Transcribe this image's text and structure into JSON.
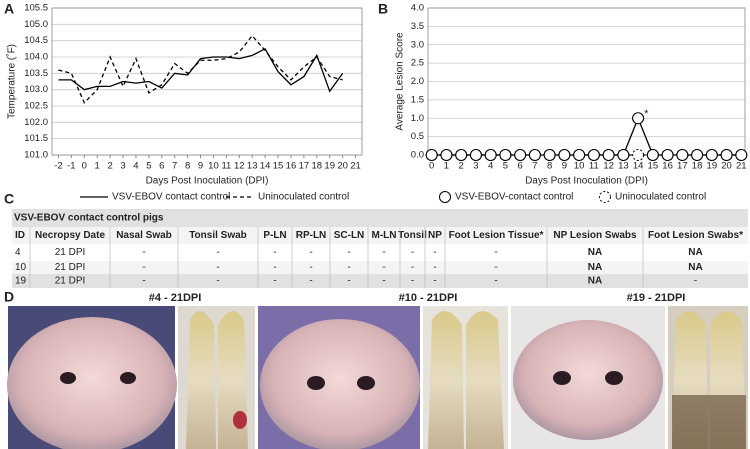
{
  "chart_data": [
    {
      "type": "line",
      "panel": "A",
      "y_label": "Temperature (˚F)",
      "x_label": "Days Post Inoculation (DPI)",
      "x": [
        -2,
        -1,
        0,
        1,
        2,
        3,
        4,
        5,
        6,
        7,
        8,
        9,
        10,
        11,
        12,
        13,
        14,
        15,
        16,
        17,
        18,
        19,
        20
      ],
      "series": [
        {
          "name": "VSV-EBOV contact control",
          "color": "#000000",
          "line_style": "solid",
          "values": [
            103.3,
            103.3,
            103.0,
            103.1,
            103.1,
            103.25,
            103.2,
            103.25,
            103.05,
            103.5,
            103.45,
            103.95,
            104.0,
            104.0,
            103.95,
            104.05,
            104.25,
            103.55,
            103.15,
            103.4,
            104.05,
            102.95,
            103.5
          ]
        },
        {
          "name": "Uninoculated control",
          "color": "#000000",
          "line_style": "dashed",
          "values": [
            103.6,
            103.5,
            102.6,
            103.0,
            104.0,
            103.1,
            103.95,
            102.9,
            103.15,
            103.8,
            103.5,
            103.9,
            103.9,
            103.95,
            104.15,
            104.65,
            104.2,
            103.7,
            103.3,
            103.7,
            104.0,
            103.4,
            103.3
          ]
        }
      ],
      "xlim": [
        -2.5,
        21.5
      ],
      "xticks": [
        -2,
        -1,
        0,
        1,
        2,
        3,
        4,
        5,
        6,
        7,
        8,
        9,
        10,
        11,
        12,
        13,
        14,
        15,
        16,
        17,
        18,
        19,
        20,
        21
      ],
      "ylim": [
        101,
        105.5
      ],
      "yticks": [
        {
          "value": 101,
          "label": "101.0"
        },
        101.5,
        {
          "value": 102,
          "label": "102.0"
        },
        102.5,
        {
          "value": 103,
          "label": "103.0"
        },
        103.5,
        {
          "value": 104,
          "label": "104.0"
        },
        104.5,
        {
          "value": 105,
          "label": "105.0"
        },
        105.5
      ],
      "grid": true,
      "legend": "bottom"
    },
    {
      "type": "line",
      "panel": "B",
      "y_label": "Average Lesion Score",
      "x_label": "Days Post Inoculation (DPI)",
      "x": [
        0,
        1,
        2,
        3,
        4,
        5,
        6,
        7,
        8,
        9,
        10,
        11,
        12,
        13,
        14,
        15,
        16,
        17,
        18,
        19,
        20,
        21
      ],
      "series": [
        {
          "name": "Uninoculated control",
          "color": "#000000",
          "line_style": "dashed",
          "marker": "circle",
          "values": [
            0,
            0,
            0,
            0,
            0,
            0,
            0,
            0,
            0,
            0,
            0,
            0,
            0,
            0,
            0,
            0,
            0,
            0,
            0,
            0,
            0,
            0
          ]
        },
        {
          "name": "VSV-EBOV-contact control",
          "color": "#000000",
          "line_style": "solid",
          "marker": "circle",
          "values": [
            0,
            0,
            0,
            0,
            0,
            0,
            0,
            0,
            0,
            0,
            0,
            0,
            0,
            0,
            1.0,
            0,
            0,
            0,
            0,
            0,
            0,
            0
          ]
        }
      ],
      "annotations": [
        {
          "x": 14,
          "y": 1.0,
          "text": "*"
        }
      ],
      "xlim": [
        -0.25,
        21.25
      ],
      "xticks": [
        0,
        1,
        2,
        3,
        4,
        5,
        6,
        7,
        8,
        9,
        10,
        11,
        12,
        13,
        14,
        15,
        16,
        17,
        18,
        19,
        20,
        21
      ],
      "ylim": [
        0,
        4
      ],
      "yticks": [
        {
          "value": 0,
          "label": "0.0"
        },
        0.5,
        {
          "value": 1,
          "label": "1.0"
        },
        1.5,
        {
          "value": 2,
          "label": "2.0"
        },
        2.5,
        {
          "value": 3,
          "label": "3.0"
        },
        3.5,
        {
          "value": 4,
          "label": "4.0"
        }
      ],
      "grid": true,
      "legend": "bottom"
    }
  ],
  "table": {
    "panel": "C",
    "title": "VSV-EBOV contact control pigs",
    "header": [
      "ID",
      "Necropsy Date",
      "Nasal Swab",
      "Tonsil Swab",
      "P-LN",
      "RP-LN",
      "SC-LN",
      "M-LN",
      "Tonsil",
      "NP",
      "Foot Lesion Tissue*",
      "NP Lesion Swabs",
      "Foot Lesion Swabs*"
    ],
    "rows": [
      [
        "4",
        "21 DPI",
        "-",
        "-",
        "-",
        "-",
        "-",
        "-",
        "-",
        "-",
        "-",
        "NA",
        "NA"
      ],
      [
        "10",
        "21 DPI",
        "-",
        "-",
        "-",
        "-",
        "-",
        "-",
        "-",
        "-",
        "-",
        "NA",
        "NA"
      ],
      [
        "19",
        "21 DPI",
        "-",
        "-",
        "-",
        "-",
        "-",
        "-",
        "-",
        "-",
        "-",
        "NA",
        "-"
      ]
    ]
  },
  "photos": {
    "panel": "D",
    "labels": [
      "#4 - 21DPI",
      "#10 - 21DPI",
      "#19 - 21DPI"
    ]
  }
}
